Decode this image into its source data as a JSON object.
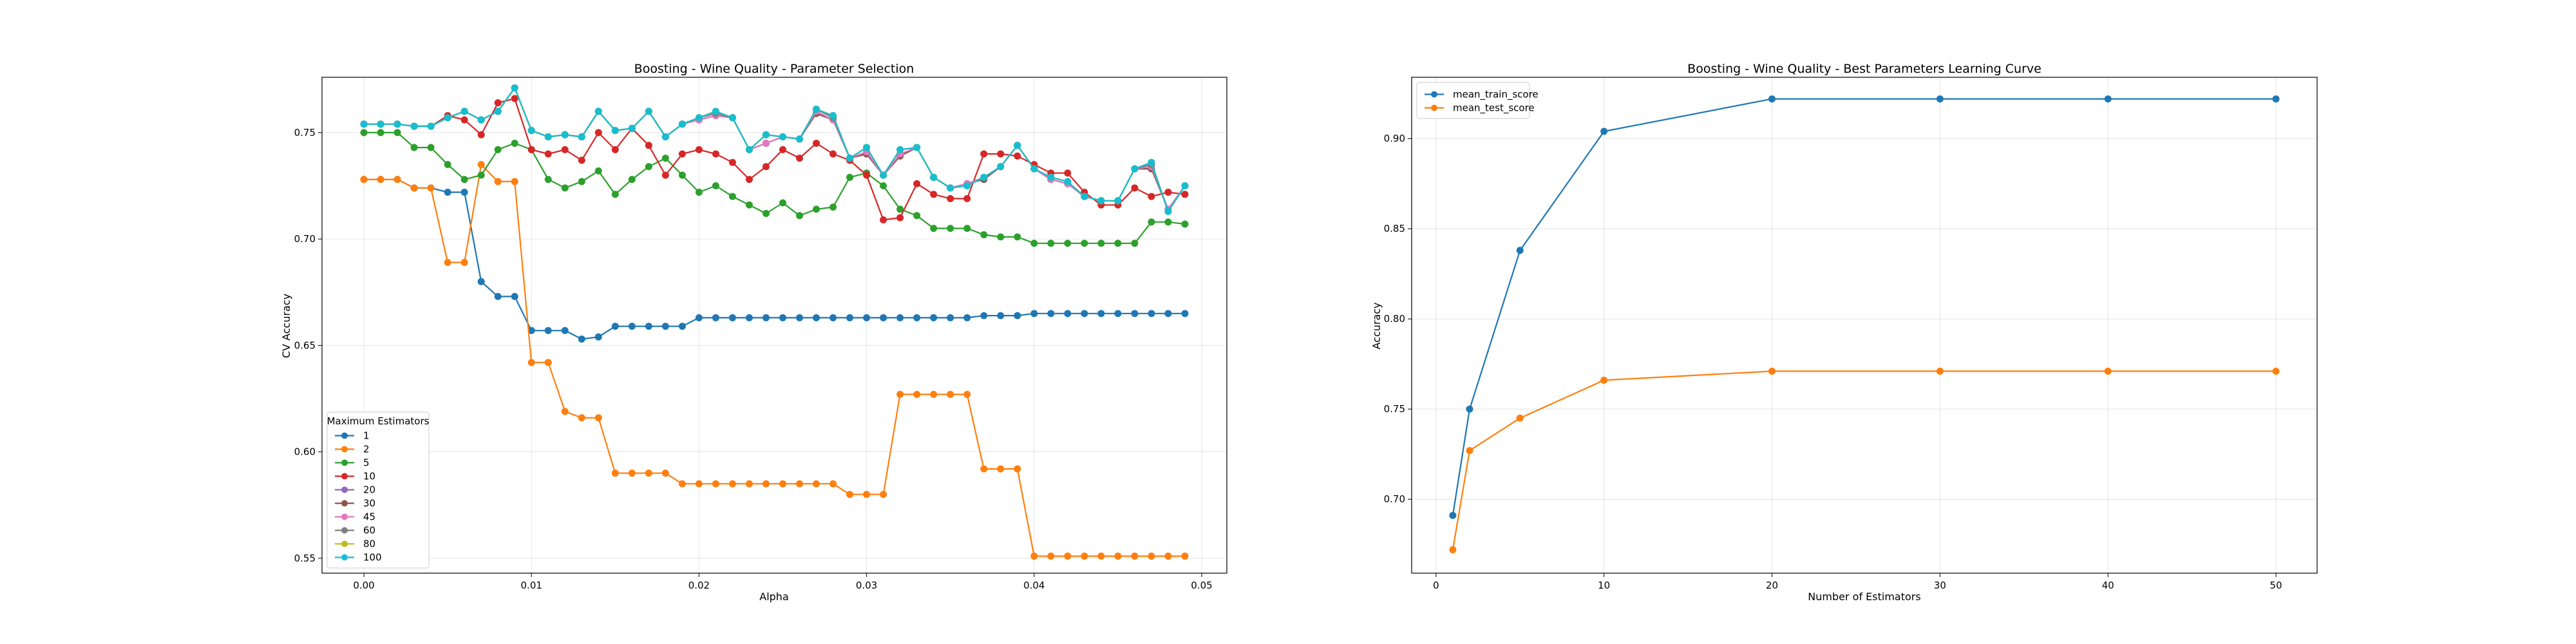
{
  "chart_data": [
    {
      "type": "line",
      "title": "Boosting - Wine Quality - Parameter Selection",
      "xlabel": "Alpha",
      "ylabel": "CV Accuracy",
      "xlim": [
        -0.0025,
        0.0515
      ],
      "ylim": [
        0.543,
        0.776
      ],
      "xticks": [
        0.0,
        0.01,
        0.02,
        0.03,
        0.04,
        0.05
      ],
      "xtick_labels": [
        "0.00",
        "0.01",
        "0.02",
        "0.03",
        "0.04",
        "0.05"
      ],
      "yticks": [
        0.55,
        0.6,
        0.65,
        0.7,
        0.75
      ],
      "ytick_labels": [
        "0.55",
        "0.60",
        "0.65",
        "0.70",
        "0.75"
      ],
      "grid": true,
      "legend_title": "Maximum Estimators",
      "legend_position": "lower-left",
      "x": [
        0.0,
        0.001,
        0.002,
        0.003,
        0.004,
        0.005,
        0.006,
        0.007,
        0.008,
        0.009,
        0.01,
        0.011,
        0.012,
        0.013,
        0.014,
        0.015,
        0.016,
        0.017,
        0.018,
        0.019,
        0.02,
        0.021,
        0.022,
        0.023,
        0.024,
        0.025,
        0.026,
        0.027,
        0.028,
        0.029,
        0.03,
        0.031,
        0.032,
        0.033,
        0.034,
        0.035,
        0.036,
        0.037,
        0.038,
        0.039,
        0.04,
        0.041,
        0.042,
        0.043,
        0.044,
        0.045,
        0.046,
        0.047,
        0.048,
        0.049
      ],
      "series": [
        {
          "name": "1",
          "color": "#1f77b4",
          "values": [
            0.728,
            0.728,
            0.728,
            0.724,
            0.724,
            0.722,
            0.722,
            0.68,
            0.673,
            0.673,
            0.657,
            0.657,
            0.657,
            0.653,
            0.654,
            0.659,
            0.659,
            0.659,
            0.659,
            0.659,
            0.663,
            0.663,
            0.663,
            0.663,
            0.663,
            0.663,
            0.663,
            0.663,
            0.663,
            0.663,
            0.663,
            0.663,
            0.663,
            0.663,
            0.663,
            0.663,
            0.663,
            0.664,
            0.664,
            0.664,
            0.665,
            0.665,
            0.665,
            0.665,
            0.665,
            0.665,
            0.665,
            0.665,
            0.665,
            0.665
          ]
        },
        {
          "name": "2",
          "color": "#ff7f0e",
          "values": [
            0.728,
            0.728,
            0.728,
            0.724,
            0.724,
            0.689,
            0.689,
            0.735,
            0.727,
            0.727,
            0.642,
            0.642,
            0.619,
            0.616,
            0.616,
            0.59,
            0.59,
            0.59,
            0.59,
            0.585,
            0.585,
            0.585,
            0.585,
            0.585,
            0.585,
            0.585,
            0.585,
            0.585,
            0.585,
            0.58,
            0.58,
            0.58,
            0.627,
            0.627,
            0.627,
            0.627,
            0.627,
            0.592,
            0.592,
            0.592,
            0.551,
            0.551,
            0.551,
            0.551,
            0.551,
            0.551,
            0.551,
            0.551,
            0.551,
            0.551
          ]
        },
        {
          "name": "5",
          "color": "#2ca02c",
          "values": [
            0.75,
            0.75,
            0.75,
            0.743,
            0.743,
            0.735,
            0.728,
            0.73,
            0.742,
            0.745,
            0.742,
            0.728,
            0.724,
            0.727,
            0.732,
            0.721,
            0.728,
            0.734,
            0.738,
            0.73,
            0.722,
            0.725,
            0.72,
            0.716,
            0.712,
            0.717,
            0.711,
            0.714,
            0.715,
            0.729,
            0.731,
            0.725,
            0.714,
            0.711,
            0.705,
            0.705,
            0.705,
            0.702,
            0.701,
            0.701,
            0.698,
            0.698,
            0.698,
            0.698,
            0.698,
            0.698,
            0.698,
            0.708,
            0.708,
            0.707
          ]
        },
        {
          "name": "10",
          "color": "#d62728",
          "values": [
            0.754,
            0.754,
            0.754,
            0.753,
            0.753,
            0.758,
            0.756,
            0.749,
            0.764,
            0.766,
            0.742,
            0.74,
            0.742,
            0.737,
            0.75,
            0.742,
            0.752,
            0.744,
            0.73,
            0.74,
            0.742,
            0.74,
            0.736,
            0.728,
            0.734,
            0.742,
            0.738,
            0.745,
            0.74,
            0.737,
            0.73,
            0.709,
            0.71,
            0.726,
            0.721,
            0.719,
            0.719,
            0.74,
            0.74,
            0.739,
            0.735,
            0.731,
            0.731,
            0.722,
            0.716,
            0.716,
            0.724,
            0.72,
            0.722,
            0.721
          ]
        },
        {
          "name": "20",
          "color": "#9467bd",
          "values": [
            0.754,
            0.754,
            0.754,
            0.753,
            0.753,
            0.757,
            0.76,
            0.756,
            0.76,
            0.771,
            0.751,
            0.748,
            0.749,
            0.748,
            0.76,
            0.751,
            0.752,
            0.76,
            0.748,
            0.754,
            0.756,
            0.758,
            0.757,
            0.742,
            0.745,
            0.748,
            0.747,
            0.759,
            0.756,
            0.738,
            0.74,
            0.73,
            0.739,
            0.743,
            0.729,
            0.724,
            0.726,
            0.728,
            0.734,
            0.744,
            0.733,
            0.728,
            0.726,
            0.72,
            0.718,
            0.718,
            0.733,
            0.733,
            0.714,
            0.725
          ]
        },
        {
          "name": "30",
          "color": "#8c564b",
          "values": [
            0.754,
            0.754,
            0.754,
            0.753,
            0.753,
            0.757,
            0.76,
            0.756,
            0.76,
            0.771,
            0.751,
            0.748,
            0.749,
            0.748,
            0.76,
            0.751,
            0.752,
            0.76,
            0.748,
            0.754,
            0.756,
            0.758,
            0.757,
            0.742,
            0.745,
            0.748,
            0.747,
            0.759,
            0.756,
            0.738,
            0.74,
            0.73,
            0.739,
            0.743,
            0.729,
            0.724,
            0.726,
            0.728,
            0.734,
            0.744,
            0.733,
            0.728,
            0.726,
            0.72,
            0.718,
            0.718,
            0.733,
            0.733,
            0.714,
            0.725
          ]
        },
        {
          "name": "45",
          "color": "#e377c2",
          "values": [
            0.754,
            0.754,
            0.754,
            0.753,
            0.753,
            0.757,
            0.76,
            0.756,
            0.76,
            0.771,
            0.751,
            0.748,
            0.749,
            0.748,
            0.76,
            0.751,
            0.752,
            0.76,
            0.748,
            0.754,
            0.756,
            0.758,
            0.757,
            0.742,
            0.745,
            0.748,
            0.747,
            0.76,
            0.756,
            0.738,
            0.741,
            0.73,
            0.74,
            0.743,
            0.729,
            0.724,
            0.726,
            0.729,
            0.734,
            0.744,
            0.733,
            0.728,
            0.726,
            0.72,
            0.718,
            0.718,
            0.733,
            0.734,
            0.714,
            0.725
          ]
        },
        {
          "name": "60",
          "color": "#7f7f7f",
          "values": [
            0.754,
            0.754,
            0.754,
            0.753,
            0.753,
            0.757,
            0.76,
            0.756,
            0.76,
            0.771,
            0.751,
            0.748,
            0.749,
            0.748,
            0.76,
            0.751,
            0.752,
            0.76,
            0.748,
            0.754,
            0.757,
            0.759,
            0.757,
            0.742,
            0.749,
            0.748,
            0.747,
            0.761,
            0.757,
            0.738,
            0.743,
            0.73,
            0.742,
            0.743,
            0.729,
            0.724,
            0.725,
            0.729,
            0.734,
            0.744,
            0.733,
            0.729,
            0.727,
            0.72,
            0.718,
            0.718,
            0.733,
            0.735,
            0.713,
            0.725
          ]
        },
        {
          "name": "80",
          "color": "#bcbd22",
          "values": [
            0.754,
            0.754,
            0.754,
            0.753,
            0.753,
            0.757,
            0.76,
            0.756,
            0.76,
            0.771,
            0.751,
            0.748,
            0.749,
            0.748,
            0.76,
            0.751,
            0.752,
            0.76,
            0.748,
            0.754,
            0.757,
            0.76,
            0.757,
            0.742,
            0.749,
            0.748,
            0.747,
            0.761,
            0.758,
            0.738,
            0.743,
            0.73,
            0.742,
            0.743,
            0.729,
            0.724,
            0.725,
            0.729,
            0.734,
            0.744,
            0.733,
            0.729,
            0.727,
            0.72,
            0.718,
            0.718,
            0.733,
            0.736,
            0.713,
            0.725
          ]
        },
        {
          "name": "100",
          "color": "#17becf",
          "values": [
            0.754,
            0.754,
            0.754,
            0.753,
            0.753,
            0.757,
            0.76,
            0.756,
            0.76,
            0.771,
            0.751,
            0.748,
            0.749,
            0.748,
            0.76,
            0.751,
            0.752,
            0.76,
            0.748,
            0.754,
            0.757,
            0.76,
            0.757,
            0.742,
            0.749,
            0.748,
            0.747,
            0.761,
            0.758,
            0.738,
            0.743,
            0.73,
            0.742,
            0.743,
            0.729,
            0.724,
            0.725,
            0.729,
            0.734,
            0.744,
            0.733,
            0.729,
            0.727,
            0.72,
            0.718,
            0.718,
            0.733,
            0.736,
            0.713,
            0.725
          ]
        }
      ]
    },
    {
      "type": "line",
      "title": "Boosting - Wine Quality - Best Parameters Learning Curve",
      "xlabel": "Number of Estimators",
      "ylabel": "Accuracy",
      "xlim": [
        -1.45,
        52.45
      ],
      "ylim": [
        0.659,
        0.934
      ],
      "xticks": [
        0,
        10,
        20,
        30,
        40,
        50
      ],
      "xtick_labels": [
        "0",
        "10",
        "20",
        "30",
        "40",
        "50"
      ],
      "yticks": [
        0.7,
        0.75,
        0.8,
        0.85,
        0.9
      ],
      "ytick_labels": [
        "0.70",
        "0.75",
        "0.80",
        "0.85",
        "0.90"
      ],
      "grid": true,
      "legend_position": "upper-left",
      "x": [
        1,
        2,
        5,
        10,
        20,
        30,
        40,
        50
      ],
      "series": [
        {
          "name": "mean_train_score",
          "color": "#1f77b4",
          "values": [
            0.691,
            0.75,
            0.838,
            0.904,
            0.922,
            0.922,
            0.922,
            0.922
          ]
        },
        {
          "name": "mean_test_score",
          "color": "#ff7f0e",
          "values": [
            0.672,
            0.727,
            0.745,
            0.766,
            0.771,
            0.771,
            0.771,
            0.771
          ]
        }
      ]
    }
  ]
}
